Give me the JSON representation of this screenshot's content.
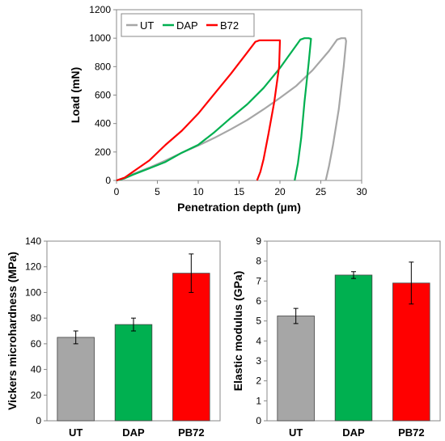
{
  "chart_data": [
    {
      "type": "line",
      "xlabel": "Penetration depth (µm)",
      "ylabel": "Load  (mN)",
      "xlim": [
        0,
        30
      ],
      "ylim": [
        0,
        1200
      ],
      "xticks": [
        0,
        5,
        10,
        15,
        20,
        25,
        30
      ],
      "yticks": [
        0,
        200,
        400,
        600,
        800,
        1000,
        1200
      ],
      "grid": false,
      "legend": "top-left, horizontal, boxed",
      "series": [
        {
          "name": "UT",
          "color": "#A6A6A6",
          "x": [
            0,
            1,
            2,
            4,
            6,
            8,
            10,
            12,
            14,
            16,
            18,
            20,
            22,
            24,
            26,
            27,
            27.5,
            28,
            28.1,
            27.8,
            27.2,
            26.5,
            26,
            25.6
          ],
          "y": [
            0,
            20,
            45,
            90,
            140,
            195,
            245,
            300,
            360,
            425,
            500,
            580,
            665,
            775,
            910,
            990,
            1000,
            1000,
            980,
            800,
            500,
            250,
            100,
            0
          ]
        },
        {
          "name": "DAP",
          "color": "#00B050",
          "x": [
            0,
            1,
            2,
            4,
            6,
            8,
            10,
            12,
            14,
            16,
            18,
            20,
            21,
            22,
            22.5,
            23,
            23.5,
            23.8,
            23.5,
            23.0,
            22.6,
            22.2,
            21.8
          ],
          "y": [
            0,
            15,
            40,
            85,
            130,
            195,
            250,
            340,
            440,
            535,
            650,
            790,
            870,
            950,
            990,
            1000,
            1000,
            995,
            820,
            550,
            300,
            120,
            0
          ]
        },
        {
          "name": "B72",
          "color": "#FF0000",
          "x": [
            0,
            1,
            2,
            4,
            6,
            8,
            10,
            12,
            14,
            16,
            17,
            17.5,
            18,
            18.5,
            19,
            19.5,
            20,
            19.9,
            19.3,
            18.6,
            18.0,
            17.6,
            17.2
          ],
          "y": [
            0,
            20,
            60,
            140,
            250,
            350,
            470,
            610,
            750,
            900,
            975,
            985,
            985,
            985,
            985,
            985,
            985,
            800,
            550,
            330,
            150,
            60,
            0
          ]
        }
      ]
    },
    {
      "type": "bar",
      "categories": [
        "UT",
        "DAP",
        "PB72"
      ],
      "values": [
        65,
        75,
        115
      ],
      "errors": [
        5,
        5,
        15
      ],
      "colors": [
        "#A6A6A6",
        "#00B050",
        "#FF0000"
      ],
      "ylabel": "Vickers microhardness (MPa)",
      "ylim": [
        0,
        140
      ],
      "yticks": [
        0,
        20,
        40,
        60,
        80,
        100,
        120,
        140
      ],
      "grid": false
    },
    {
      "type": "bar",
      "categories": [
        "UT",
        "DAP",
        "PB72"
      ],
      "values": [
        5.25,
        7.3,
        6.9
      ],
      "errors": [
        0.38,
        0.17,
        1.05
      ],
      "colors": [
        "#A6A6A6",
        "#00B050",
        "#FF0000"
      ],
      "ylabel": "Elastic modulus (GPa)",
      "ylim": [
        0,
        9
      ],
      "yticks": [
        0,
        1,
        2,
        3,
        4,
        5,
        6,
        7,
        8,
        9
      ],
      "grid": false
    }
  ]
}
